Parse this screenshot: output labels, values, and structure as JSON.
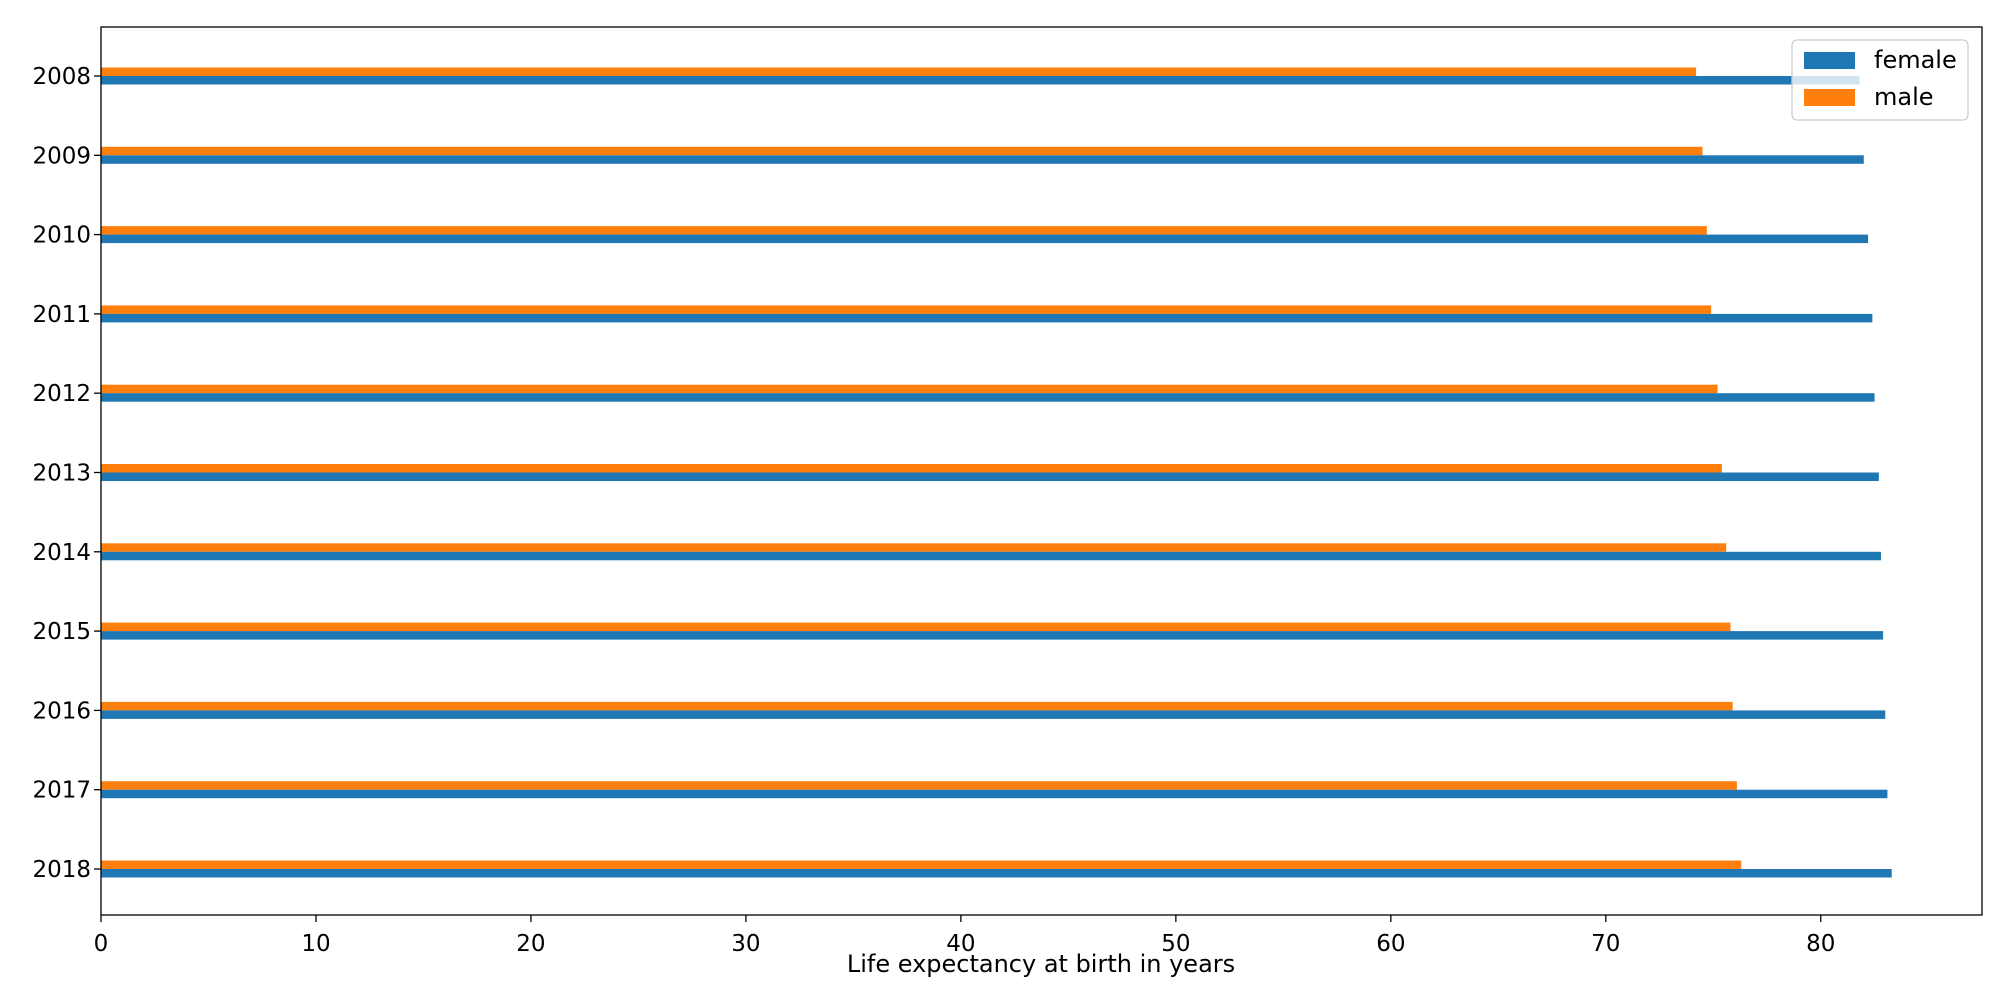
{
  "chart_data": {
    "type": "bar",
    "orientation": "horizontal",
    "title": "",
    "xlabel": "Life expectancy at birth in years",
    "ylabel": "",
    "categories": [
      "2008",
      "2009",
      "2010",
      "2011",
      "2012",
      "2013",
      "2014",
      "2015",
      "2016",
      "2017",
      "2018"
    ],
    "series": [
      {
        "name": "female",
        "color": "#1f77b4",
        "values": [
          81.8,
          82.0,
          82.2,
          82.4,
          82.5,
          82.7,
          82.8,
          82.9,
          83.0,
          83.1,
          83.3
        ]
      },
      {
        "name": "male",
        "color": "#ff7f0e",
        "values": [
          74.2,
          74.5,
          74.7,
          74.9,
          75.2,
          75.4,
          75.6,
          75.8,
          75.9,
          76.1,
          76.3
        ]
      }
    ],
    "xlim": [
      0,
      87.5
    ],
    "xticks": [
      "0",
      "10",
      "20",
      "30",
      "40",
      "50",
      "60",
      "70",
      "80"
    ],
    "grid": false,
    "legend_position": "top-right"
  }
}
